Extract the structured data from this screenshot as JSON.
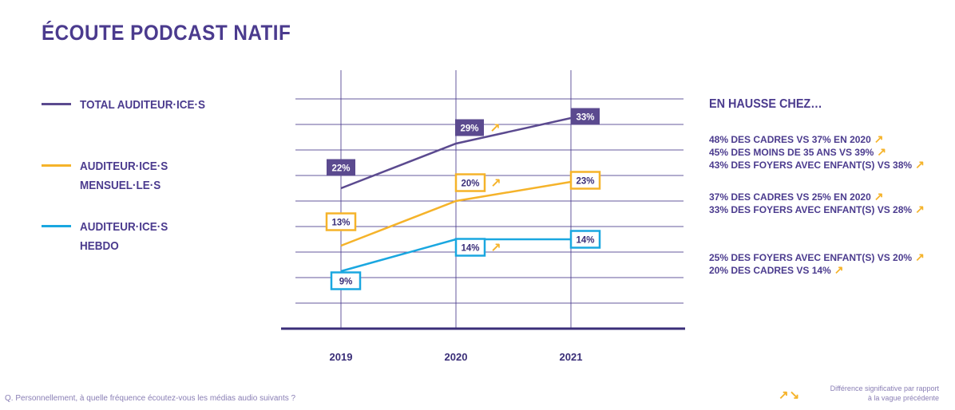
{
  "title": "ÉCOUTE PODCAST NATIF",
  "legend": [
    {
      "label": "TOTAL AUDITEUR·ICE·S",
      "color": "#5b4a8f"
    },
    {
      "label": "AUDITEUR·ICE·S\nMENSUEL·LE·S",
      "color": "#f5b32a"
    },
    {
      "label": "AUDITEUR·ICE·S\nHEBDO",
      "color": "#1aa7e0"
    }
  ],
  "right_panel": {
    "title": "EN HAUSSE CHEZ…",
    "groups": [
      [
        "48% DES CADRES VS 37% EN 2020",
        "45% DES MOINS DE 35 ANS VS 39%",
        "43% DES FOYERS AVEC ENFANT(S) VS 38%"
      ],
      [
        "37% DES CADRES VS 25% EN 2020",
        "33% DES FOYERS AVEC ENFANT(S) VS 28%"
      ],
      [
        "25% DES FOYERS AVEC ENFANT(S) VS 20%",
        "20% DES CADRES VS 14%"
      ]
    ],
    "arrow": "↗"
  },
  "footnote": "Q. Personnellement, à quelle fréquence écoutez-vous les médias audio suivants ?",
  "significance_note": "Différence significative par rapport\nà la vague précédente",
  "significance_arrows": "↗↘",
  "chart_data": {
    "type": "line",
    "categories": [
      "2019",
      "2020",
      "2021"
    ],
    "ylim": [
      0,
      40
    ],
    "grid": true,
    "series": [
      {
        "name": "TOTAL AUDITEUR·ICE·S",
        "color": "#5b4a8f",
        "values": [
          22,
          29,
          33
        ],
        "labels": [
          "22%",
          "29%",
          "33%"
        ],
        "label_style": "filled",
        "significant_up": [
          false,
          true,
          false
        ]
      },
      {
        "name": "AUDITEUR·ICE·S MENSUEL·LE·S",
        "color": "#f5b32a",
        "values": [
          13,
          20,
          23
        ],
        "labels": [
          "13%",
          "20%",
          "23%"
        ],
        "label_style": "outline",
        "significant_up": [
          false,
          true,
          false
        ]
      },
      {
        "name": "AUDITEUR·ICE·S HEBDO",
        "color": "#1aa7e0",
        "values": [
          9,
          14,
          14
        ],
        "labels": [
          "9%",
          "14%",
          "14%"
        ],
        "label_style": "outline",
        "significant_up": [
          false,
          true,
          false
        ]
      }
    ]
  }
}
